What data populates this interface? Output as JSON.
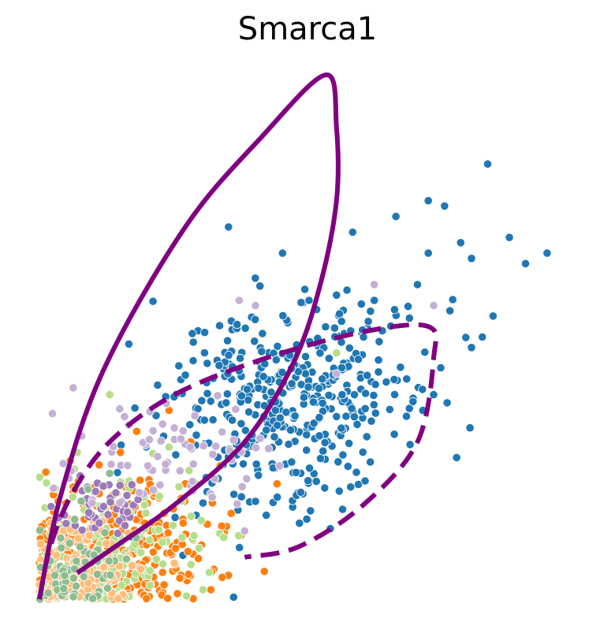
{
  "chart_data": {
    "type": "scatter",
    "title": "Smarca1",
    "xlabel": "",
    "ylabel": "",
    "axes_visible": false,
    "grid": false,
    "legend": "none",
    "xlim": [
      0,
      1.0
    ],
    "ylim": [
      0,
      1.0
    ],
    "series": [
      {
        "color": "#1f77b4",
        "cluster": {
          "center": [
            0.46,
            0.38
          ],
          "spread": [
            0.11,
            0.09
          ],
          "count": 420
        },
        "outliers": [
          [
            0.83,
            0.83
          ],
          [
            0.72,
            0.76
          ],
          [
            0.66,
            0.73
          ],
          [
            0.75,
            0.75
          ],
          [
            0.78,
            0.68
          ],
          [
            0.87,
            0.69
          ],
          [
            0.35,
            0.71
          ],
          [
            0.45,
            0.66
          ],
          [
            0.58,
            0.7
          ],
          [
            0.72,
            0.66
          ],
          [
            0.8,
            0.65
          ],
          [
            0.7,
            0.6
          ],
          [
            0.9,
            0.64
          ],
          [
            0.94,
            0.66
          ],
          [
            0.55,
            0.58
          ],
          [
            0.62,
            0.57
          ],
          [
            0.76,
            0.55
          ],
          [
            0.82,
            0.5
          ],
          [
            0.68,
            0.42
          ],
          [
            0.73,
            0.39
          ],
          [
            0.8,
            0.48
          ],
          [
            0.84,
            0.54
          ],
          [
            0.6,
            0.5
          ],
          [
            0.71,
            0.36
          ],
          [
            0.29,
            0.16
          ],
          [
            0.42,
            0.16
          ],
          [
            0.5,
            0.25
          ],
          [
            0.36,
            0.2
          ]
        ]
      },
      {
        "color": "#ff7f0e",
        "cluster": {
          "center": [
            0.12,
            0.08
          ],
          "spread": [
            0.09,
            0.07
          ],
          "count": 360
        },
        "outliers": [
          [
            0.24,
            0.36
          ],
          [
            0.18,
            0.32
          ],
          [
            0.15,
            0.28
          ],
          [
            0.27,
            0.22
          ],
          [
            0.22,
            0.14
          ],
          [
            0.26,
            0.04
          ],
          [
            0.44,
            0.22
          ],
          [
            0.2,
            0.04
          ],
          [
            0.28,
            0.3
          ]
        ]
      },
      {
        "color": "#b5de8a",
        "cluster": {
          "center": [
            0.11,
            0.08
          ],
          "spread": [
            0.08,
            0.06
          ],
          "count": 180
        },
        "outliers": [
          [
            0.13,
            0.39
          ],
          [
            0.07,
            0.28
          ],
          [
            0.29,
            0.22
          ],
          [
            0.3,
            0.15
          ],
          [
            0.24,
            0.29
          ],
          [
            0.55,
            0.47
          ]
        ]
      },
      {
        "color": "#ffbb78",
        "cluster": {
          "center": [
            0.07,
            0.05
          ],
          "spread": [
            0.05,
            0.04
          ],
          "count": 140
        },
        "outliers": [
          [
            0.02,
            0.09
          ],
          [
            0.03,
            0.02
          ],
          [
            0.1,
            0.0
          ]
        ]
      },
      {
        "color": "#9b7ab8",
        "cluster": {
          "center": [
            0.12,
            0.18
          ],
          "spread": [
            0.04,
            0.03
          ],
          "count": 45
        },
        "outliers": []
      },
      {
        "color": "#c5b0d5",
        "cluster": {
          "center": [
            0.26,
            0.28
          ],
          "spread": [
            0.09,
            0.06
          ],
          "count": 70
        },
        "outliers": [
          [
            0.37,
            0.57
          ],
          [
            0.4,
            0.56
          ],
          [
            0.62,
            0.6
          ],
          [
            0.73,
            0.56
          ],
          [
            0.38,
            0.13
          ],
          [
            0.55,
            0.43
          ]
        ]
      },
      {
        "color": "#8fbc8f",
        "cluster": {
          "center": [
            0.07,
            0.06
          ],
          "spread": [
            0.04,
            0.04
          ],
          "count": 60
        },
        "outliers": [
          [
            0.13,
            0.24
          ],
          [
            0.09,
            0.21
          ]
        ]
      }
    ],
    "curves": [
      {
        "style": "solid",
        "color": "#800080",
        "points": [
          [
            0.0,
            0.0
          ],
          [
            0.04,
            0.2
          ],
          [
            0.12,
            0.44
          ],
          [
            0.27,
            0.71
          ],
          [
            0.41,
            0.88
          ],
          [
            0.53,
            1.0
          ],
          [
            0.55,
            0.9
          ],
          [
            0.55,
            0.76
          ],
          [
            0.52,
            0.6
          ],
          [
            0.47,
            0.45
          ],
          [
            0.38,
            0.3
          ],
          [
            0.25,
            0.18
          ],
          [
            0.14,
            0.1
          ],
          [
            0.07,
            0.05
          ]
        ]
      },
      {
        "style": "dashed",
        "color": "#800080",
        "points": [
          [
            0.0,
            0.0
          ],
          [
            0.02,
            0.1
          ],
          [
            0.06,
            0.2
          ],
          [
            0.13,
            0.3
          ],
          [
            0.25,
            0.39
          ],
          [
            0.42,
            0.46
          ],
          [
            0.6,
            0.51
          ],
          [
            0.72,
            0.52
          ],
          [
            0.73,
            0.46
          ],
          [
            0.7,
            0.3
          ],
          [
            0.6,
            0.18
          ],
          [
            0.48,
            0.1
          ],
          [
            0.38,
            0.08
          ]
        ]
      }
    ]
  }
}
